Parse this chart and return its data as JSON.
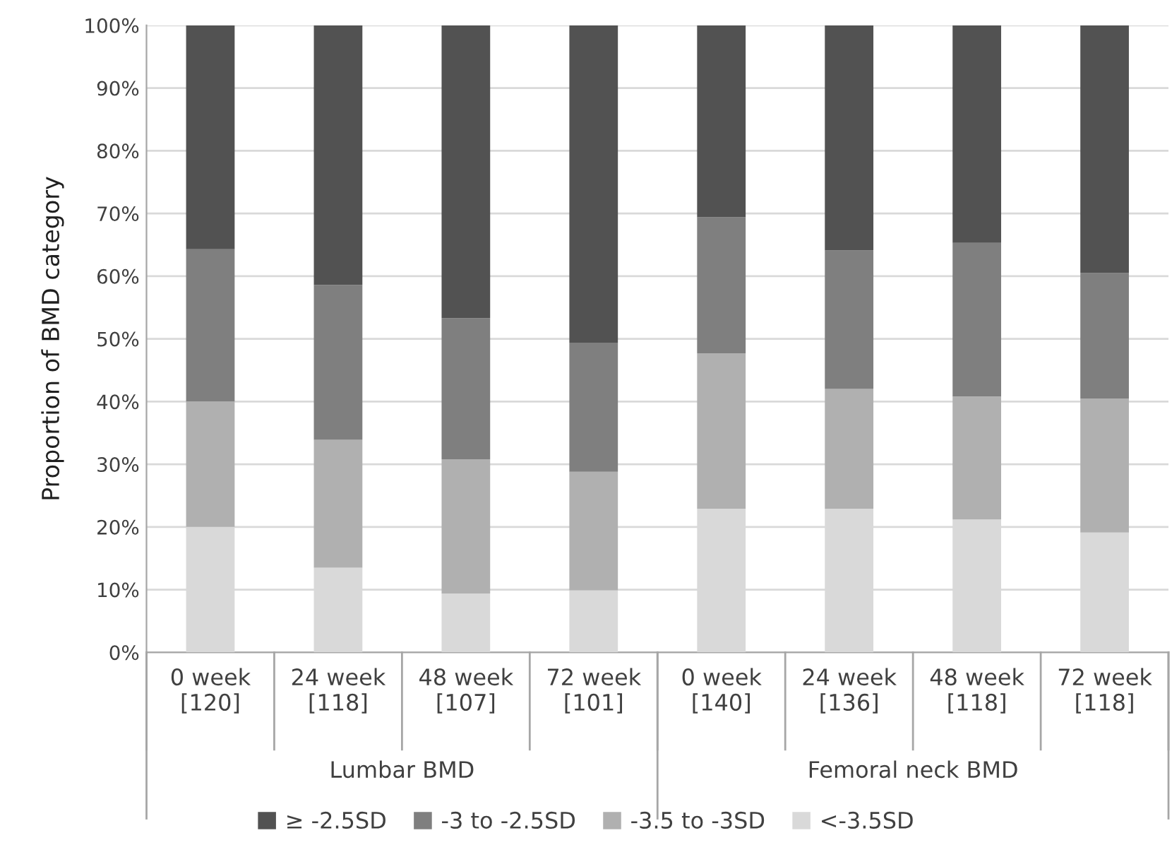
{
  "chart_data": {
    "type": "bar",
    "stacked": true,
    "ylabel": "Proportion of BMD category",
    "categories": [
      "0 week\n[120]",
      "24 week\n[118]",
      "48 week\n[107]",
      "72 week\n[101]",
      "0 week\n[140]",
      "24 week\n[136]",
      "48 week\n[118]",
      "72 week\n[118]"
    ],
    "series": [
      {
        "name": "<-3.5SD",
        "color": "#d9d9d9",
        "values": [
          20.0,
          13.5,
          9.4,
          9.9,
          22.9,
          22.9,
          21.2,
          19.1
        ]
      },
      {
        "name": "-3.5 to -3SD",
        "color": "#b0b0b0",
        "values": [
          20.0,
          20.4,
          21.4,
          18.9,
          24.8,
          19.1,
          19.6,
          21.4
        ]
      },
      {
        "name": "-3 to -2.5SD",
        "color": "#7f7f7f",
        "values": [
          24.3,
          24.7,
          22.5,
          20.6,
          21.7,
          22.1,
          24.5,
          20.0
        ]
      },
      {
        "name": "≥ -2.5SD",
        "color": "#525252",
        "values": [
          35.7,
          41.4,
          46.7,
          50.6,
          30.6,
          35.9,
          34.7,
          39.5
        ]
      }
    ],
    "ylim": [
      0,
      100
    ],
    "yticks": [
      {
        "value": 0,
        "label": "0%"
      },
      {
        "value": 10,
        "label": "10%"
      },
      {
        "value": 20,
        "label": "20%"
      },
      {
        "value": 30,
        "label": "30%"
      },
      {
        "value": 40,
        "label": "40%"
      },
      {
        "value": 50,
        "label": "50%"
      },
      {
        "value": 60,
        "label": "60%"
      },
      {
        "value": 70,
        "label": "70%"
      },
      {
        "value": 80,
        "label": "80%"
      },
      {
        "value": 90,
        "label": "90%"
      },
      {
        "value": 100,
        "label": "100%"
      }
    ],
    "grid": "y",
    "legend": "bottom",
    "annotations": [
      "Lumbar BMD",
      "Femoral neck BMD"
    ]
  }
}
